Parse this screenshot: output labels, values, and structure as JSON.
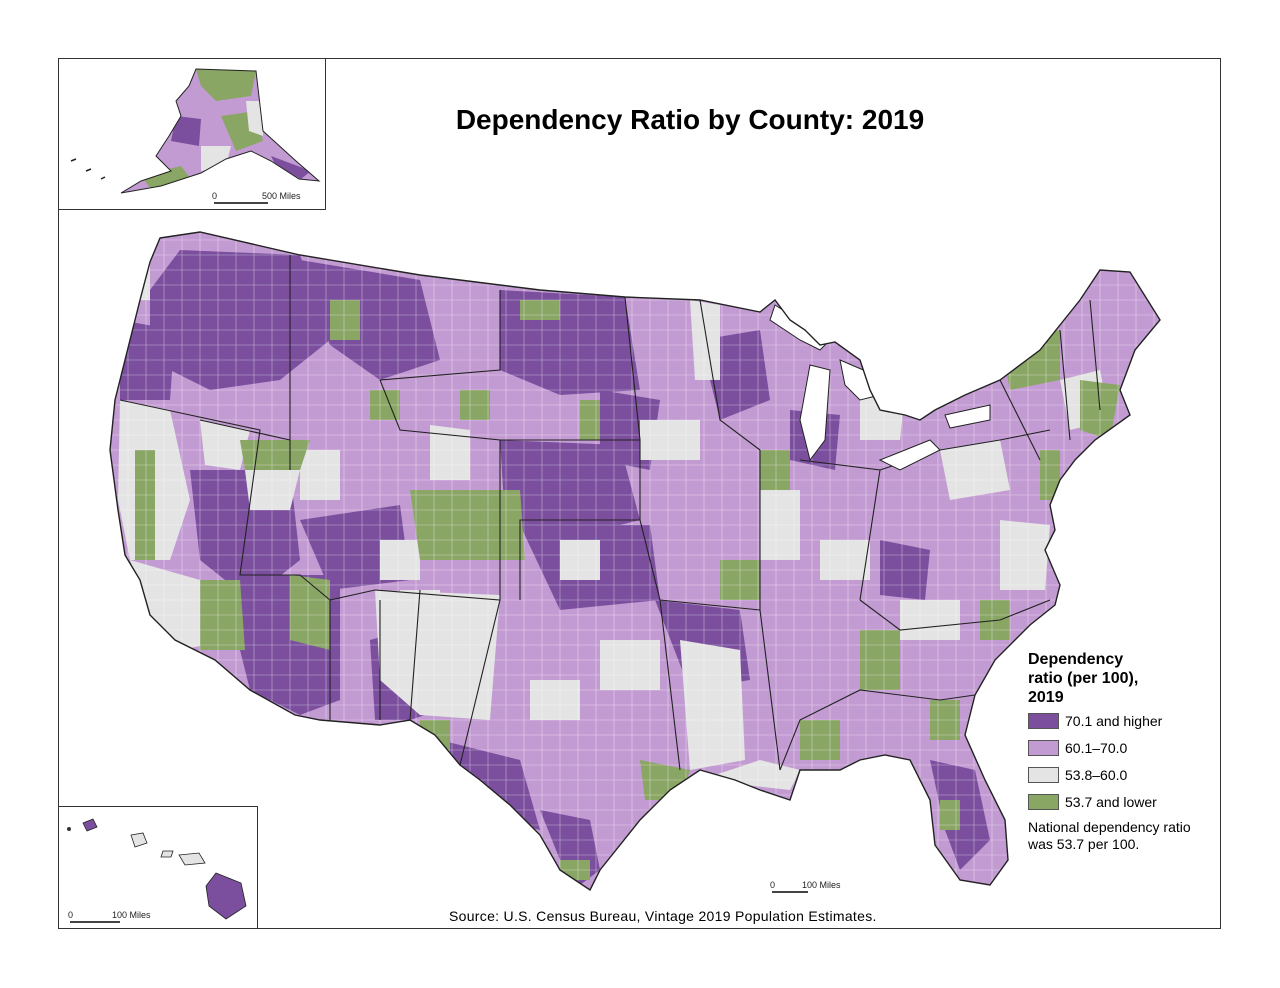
{
  "title": "Dependency Ratio by County: 2019",
  "legend": {
    "title": "Dependency ratio (per 100), 2019",
    "items": [
      {
        "label": "70.1 and higher",
        "color": "#7b4f9e"
      },
      {
        "label": "60.1–70.0",
        "color": "#c39bd3"
      },
      {
        "label": "53.8–60.0",
        "color": "#e4e4e4"
      },
      {
        "label": "53.7 and lower",
        "color": "#8aa664"
      }
    ],
    "note": "National dependency ratio was 53.7 per 100."
  },
  "source": "Source: U.S. Census Bureau, Vintage 2019 Population Estimates.",
  "scales": {
    "alaska": {
      "zero": "0",
      "label": "500 Miles"
    },
    "main": {
      "zero": "0",
      "label": "100 Miles"
    },
    "hawaii": {
      "zero": "0",
      "label": "100 Miles"
    }
  }
}
